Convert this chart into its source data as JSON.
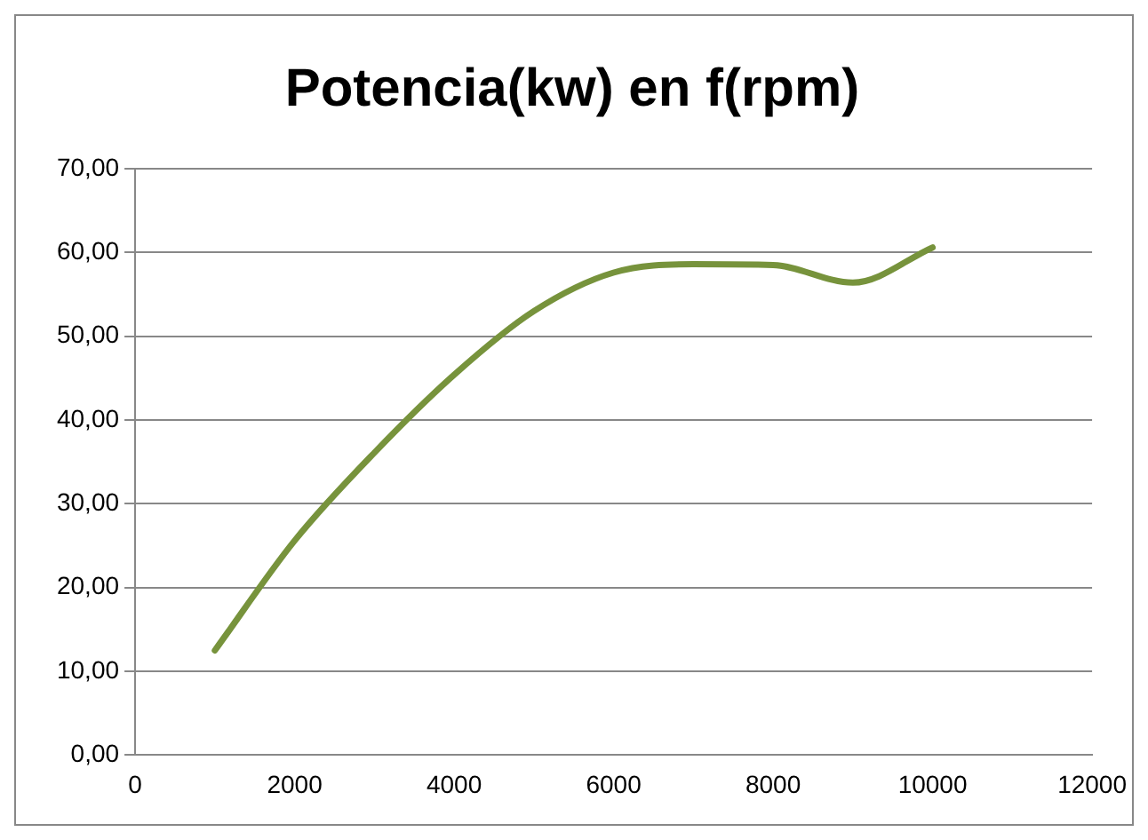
{
  "chart_data": {
    "type": "line",
    "title": "Potencia(kw) en f(rpm)",
    "x": [
      1000,
      2000,
      3000,
      4000,
      5000,
      6000,
      7000,
      8000,
      9000,
      10000
    ],
    "series": [
      {
        "color": "#77933c",
        "values": [
          12.5,
          25.6,
          36.1,
          45.4,
          53.0,
          57.6,
          58.6,
          58.5,
          56.4,
          60.6
        ]
      }
    ],
    "xlim": [
      0,
      12000
    ],
    "xticks": [
      0,
      2000,
      4000,
      6000,
      8000,
      10000,
      12000
    ],
    "ylim": [
      0,
      70
    ],
    "yticks": [
      {
        "value": 0,
        "label": "0,00"
      },
      {
        "value": 10,
        "label": "10,00"
      },
      {
        "value": 20,
        "label": "20,00"
      },
      {
        "value": 30,
        "label": "30,00"
      },
      {
        "value": 40,
        "label": "40,00"
      },
      {
        "value": 50,
        "label": "50,00"
      },
      {
        "value": 60,
        "label": "60,00"
      },
      {
        "value": 70,
        "label": "70,00"
      }
    ],
    "grid": "y",
    "legend": false,
    "marker": "none",
    "line_style": "solid"
  }
}
